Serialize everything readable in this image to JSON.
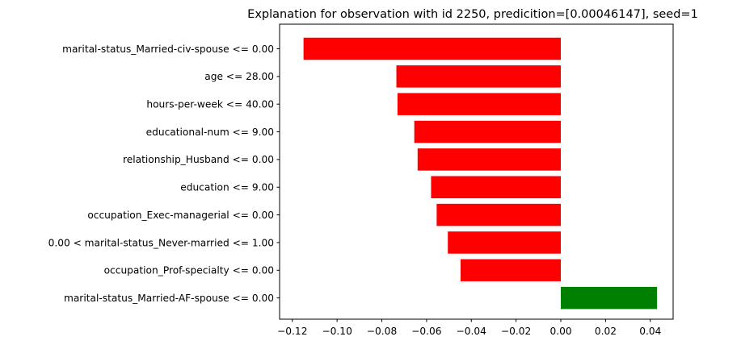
{
  "chart_data": {
    "type": "bar",
    "orientation": "horizontal",
    "title": "Explanation for observation with id 2250, predicition=[0.00046147], seed=1",
    "xlabel": "",
    "ylabel": "",
    "xlim": [
      -0.1257,
      0.0502
    ],
    "xticks": [
      -0.12,
      -0.1,
      -0.08,
      -0.06,
      -0.04,
      -0.02,
      0.0,
      0.02,
      0.04
    ],
    "xtick_labels": [
      "−0.12",
      "−0.10",
      "−0.08",
      "−0.06",
      "−0.04",
      "−0.02",
      "0.00",
      "0.02",
      "0.04"
    ],
    "categories": [
      "marital-status_Married-civ-spouse <= 0.00",
      "age <= 28.00",
      "hours-per-week <= 40.00",
      "educational-num <= 9.00",
      "relationship_Husband <= 0.00",
      "education <= 9.00",
      "occupation_Exec-managerial <= 0.00",
      "0.00 < marital-status_Never-married <= 1.00",
      "occupation_Prof-specialty <= 0.00",
      "marital-status_Married-AF-spouse <= 0.00"
    ],
    "values": [
      -0.115,
      -0.0735,
      -0.073,
      -0.0655,
      -0.064,
      -0.058,
      -0.0555,
      -0.0505,
      -0.0448,
      0.043
    ],
    "colors": {
      "negative": "#ff0000",
      "positive": "#008000"
    },
    "grid": false,
    "legend": "none"
  }
}
